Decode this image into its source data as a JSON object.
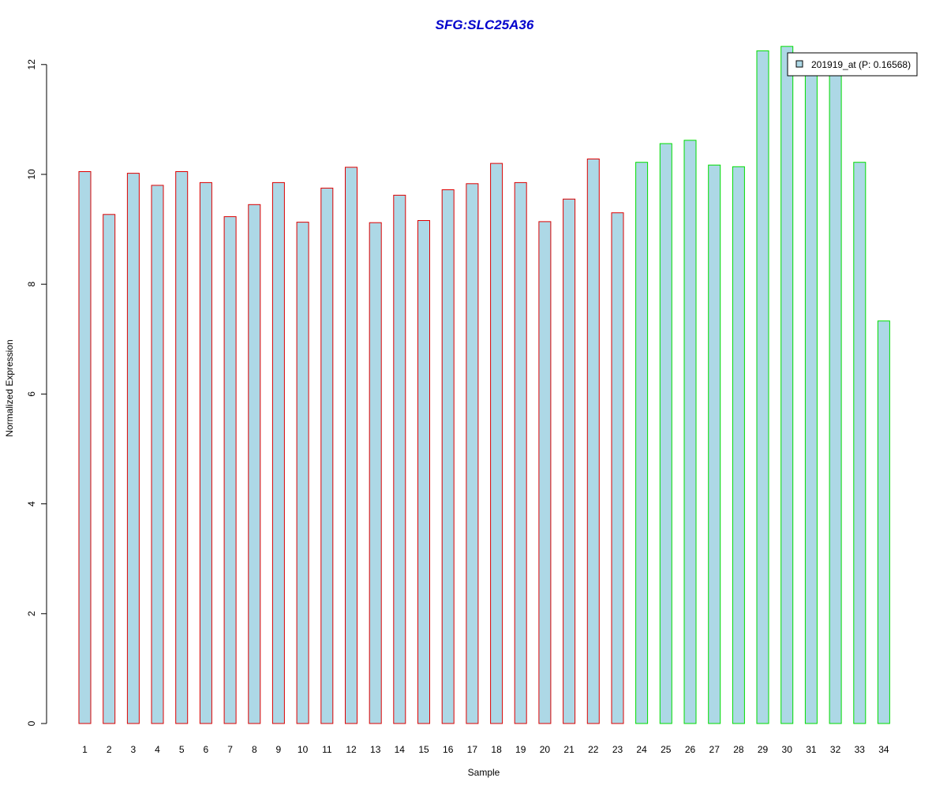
{
  "chart_data": {
    "type": "bar",
    "title": "SFG:SLC25A36",
    "xlabel": "Sample",
    "ylabel": "Normalized Expression",
    "categories": [
      "1",
      "2",
      "3",
      "4",
      "5",
      "6",
      "7",
      "8",
      "9",
      "10",
      "11",
      "12",
      "13",
      "14",
      "15",
      "16",
      "17",
      "18",
      "19",
      "20",
      "21",
      "22",
      "23",
      "24",
      "25",
      "26",
      "27",
      "28",
      "29",
      "30",
      "31",
      "32",
      "33",
      "34"
    ],
    "series": [
      {
        "name": "201919_at (P: 0.16568)",
        "values": [
          10.05,
          9.27,
          10.02,
          9.8,
          10.05,
          9.85,
          9.23,
          9.45,
          9.85,
          9.13,
          9.75,
          10.13,
          9.12,
          9.62,
          9.16,
          9.72,
          9.83,
          10.2,
          9.85,
          9.14,
          9.55,
          10.28,
          9.3,
          10.22,
          10.56,
          10.62,
          10.17,
          10.14,
          12.25,
          12.33,
          11.85,
          11.85,
          10.22,
          7.33
        ]
      }
    ],
    "groups": [
      {
        "samples": "1-23",
        "border_color": "#dd0000"
      },
      {
        "samples": "24-34",
        "border_color": "#00dd00"
      }
    ],
    "ylim": [
      0,
      12.5
    ],
    "yticks": [
      0,
      2,
      4,
      6,
      8,
      10,
      12
    ],
    "grid": false,
    "legend_position": "top-right",
    "colors": {
      "title": "#0000cc",
      "bar_fill": "#add8e6",
      "group1_border": "#dd0000",
      "group2_border": "#00dd00"
    }
  }
}
